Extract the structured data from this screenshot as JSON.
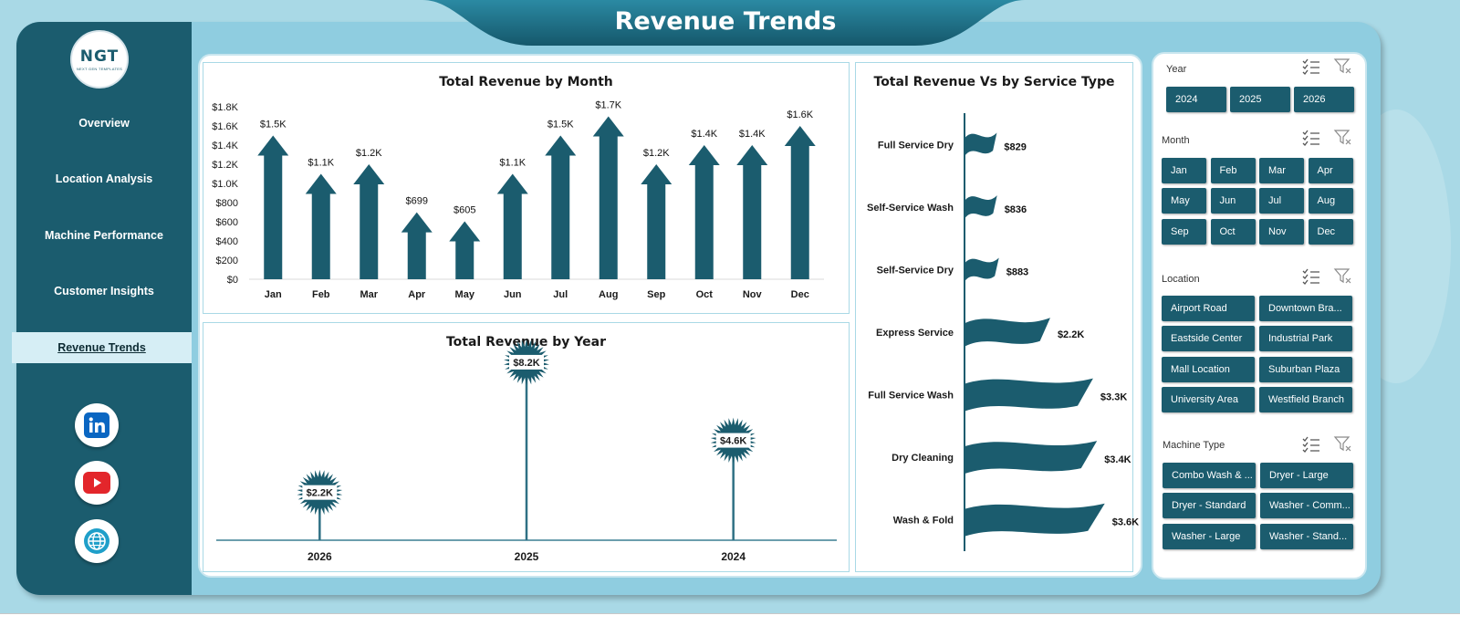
{
  "header": {
    "title": "Revenue Trends"
  },
  "logo": {
    "text": "NGT",
    "subtext": "NEXT GEN TEMPLATES"
  },
  "sidebar": {
    "items": [
      {
        "label": "Overview"
      },
      {
        "label": "Location Analysis"
      },
      {
        "label": "Machine Performance"
      },
      {
        "label": "Customer Insights"
      },
      {
        "label": "Revenue Trends",
        "active": true
      }
    ],
    "social": [
      "linkedin-icon",
      "youtube-icon",
      "globe-icon"
    ]
  },
  "colors": {
    "primary": "#1b5c6e",
    "accent_bg": "#a9d9e6",
    "youtube": "#e3262b",
    "linkedin": "#0a66c2"
  },
  "chart_data": [
    {
      "type": "bar",
      "title": "Total Revenue  by Month",
      "categories": [
        "Jan",
        "Feb",
        "Mar",
        "Apr",
        "May",
        "Jun",
        "Jul",
        "Aug",
        "Sep",
        "Oct",
        "Nov",
        "Dec"
      ],
      "values": [
        1500,
        1100,
        1200,
        699,
        605,
        1100,
        1500,
        1700,
        1200,
        1400,
        1400,
        1600
      ],
      "data_labels": [
        "$1.5K",
        "$1.1K",
        "$1.2K",
        "$699",
        "$605",
        "$1.1K",
        "$1.5K",
        "$1.7K",
        "$1.2K",
        "$1.4K",
        "$1.4K",
        "$1.6K"
      ],
      "yticks": [
        "$0",
        "$200",
        "$400",
        "$600",
        "$800",
        "$1.0K",
        "$1.2K",
        "$1.4K",
        "$1.6K",
        "$1.8K"
      ],
      "ylim": [
        0,
        1800
      ],
      "grid": false
    },
    {
      "type": "scatter",
      "title": "Total Revenue  by Year",
      "categories": [
        "2026",
        "2025",
        "2024"
      ],
      "values": [
        2200,
        8200,
        4600
      ],
      "data_labels": [
        "$2.2K",
        "$8.2K",
        "$4.6K"
      ],
      "ylim": [
        0,
        9500
      ]
    },
    {
      "type": "bar",
      "title": "Total Revenue Vs  by Service Type",
      "orientation": "horizontal",
      "categories": [
        "Full Service Dry",
        "Self-Service Wash",
        "Self-Service Dry",
        "Express Service",
        "Full Service Wash",
        "Dry Cleaning",
        "Wash & Fold"
      ],
      "values": [
        829,
        836,
        883,
        2200,
        3300,
        3400,
        3600
      ],
      "data_labels": [
        "$829",
        "$836",
        "$883",
        "$2.2K",
        "$3.3K",
        "$3.4K",
        "$3.6K"
      ],
      "xlim": [
        0,
        3700
      ]
    }
  ],
  "slicers": [
    {
      "title": "Year",
      "cols": 3,
      "items": [
        "2024",
        "2025",
        "2026"
      ]
    },
    {
      "title": "Month",
      "cols": 4,
      "items": [
        "Jan",
        "Feb",
        "Mar",
        "Apr",
        "May",
        "Jun",
        "Jul",
        "Aug",
        "Sep",
        "Oct",
        "Nov",
        "Dec"
      ]
    },
    {
      "title": "Location",
      "cols": 2,
      "items": [
        "Airport Road",
        "Downtown Bra...",
        "Eastside Center",
        "Industrial Park",
        "Mall Location",
        "Suburban Plaza",
        "University Area",
        "Westfield Branch"
      ]
    },
    {
      "title": "Machine Type",
      "cols": 2,
      "items": [
        "Combo Wash & ...",
        "Dryer - Large",
        "Dryer - Standard",
        "Washer - Comm...",
        "Washer - Large",
        "Washer - Stand..."
      ]
    }
  ]
}
